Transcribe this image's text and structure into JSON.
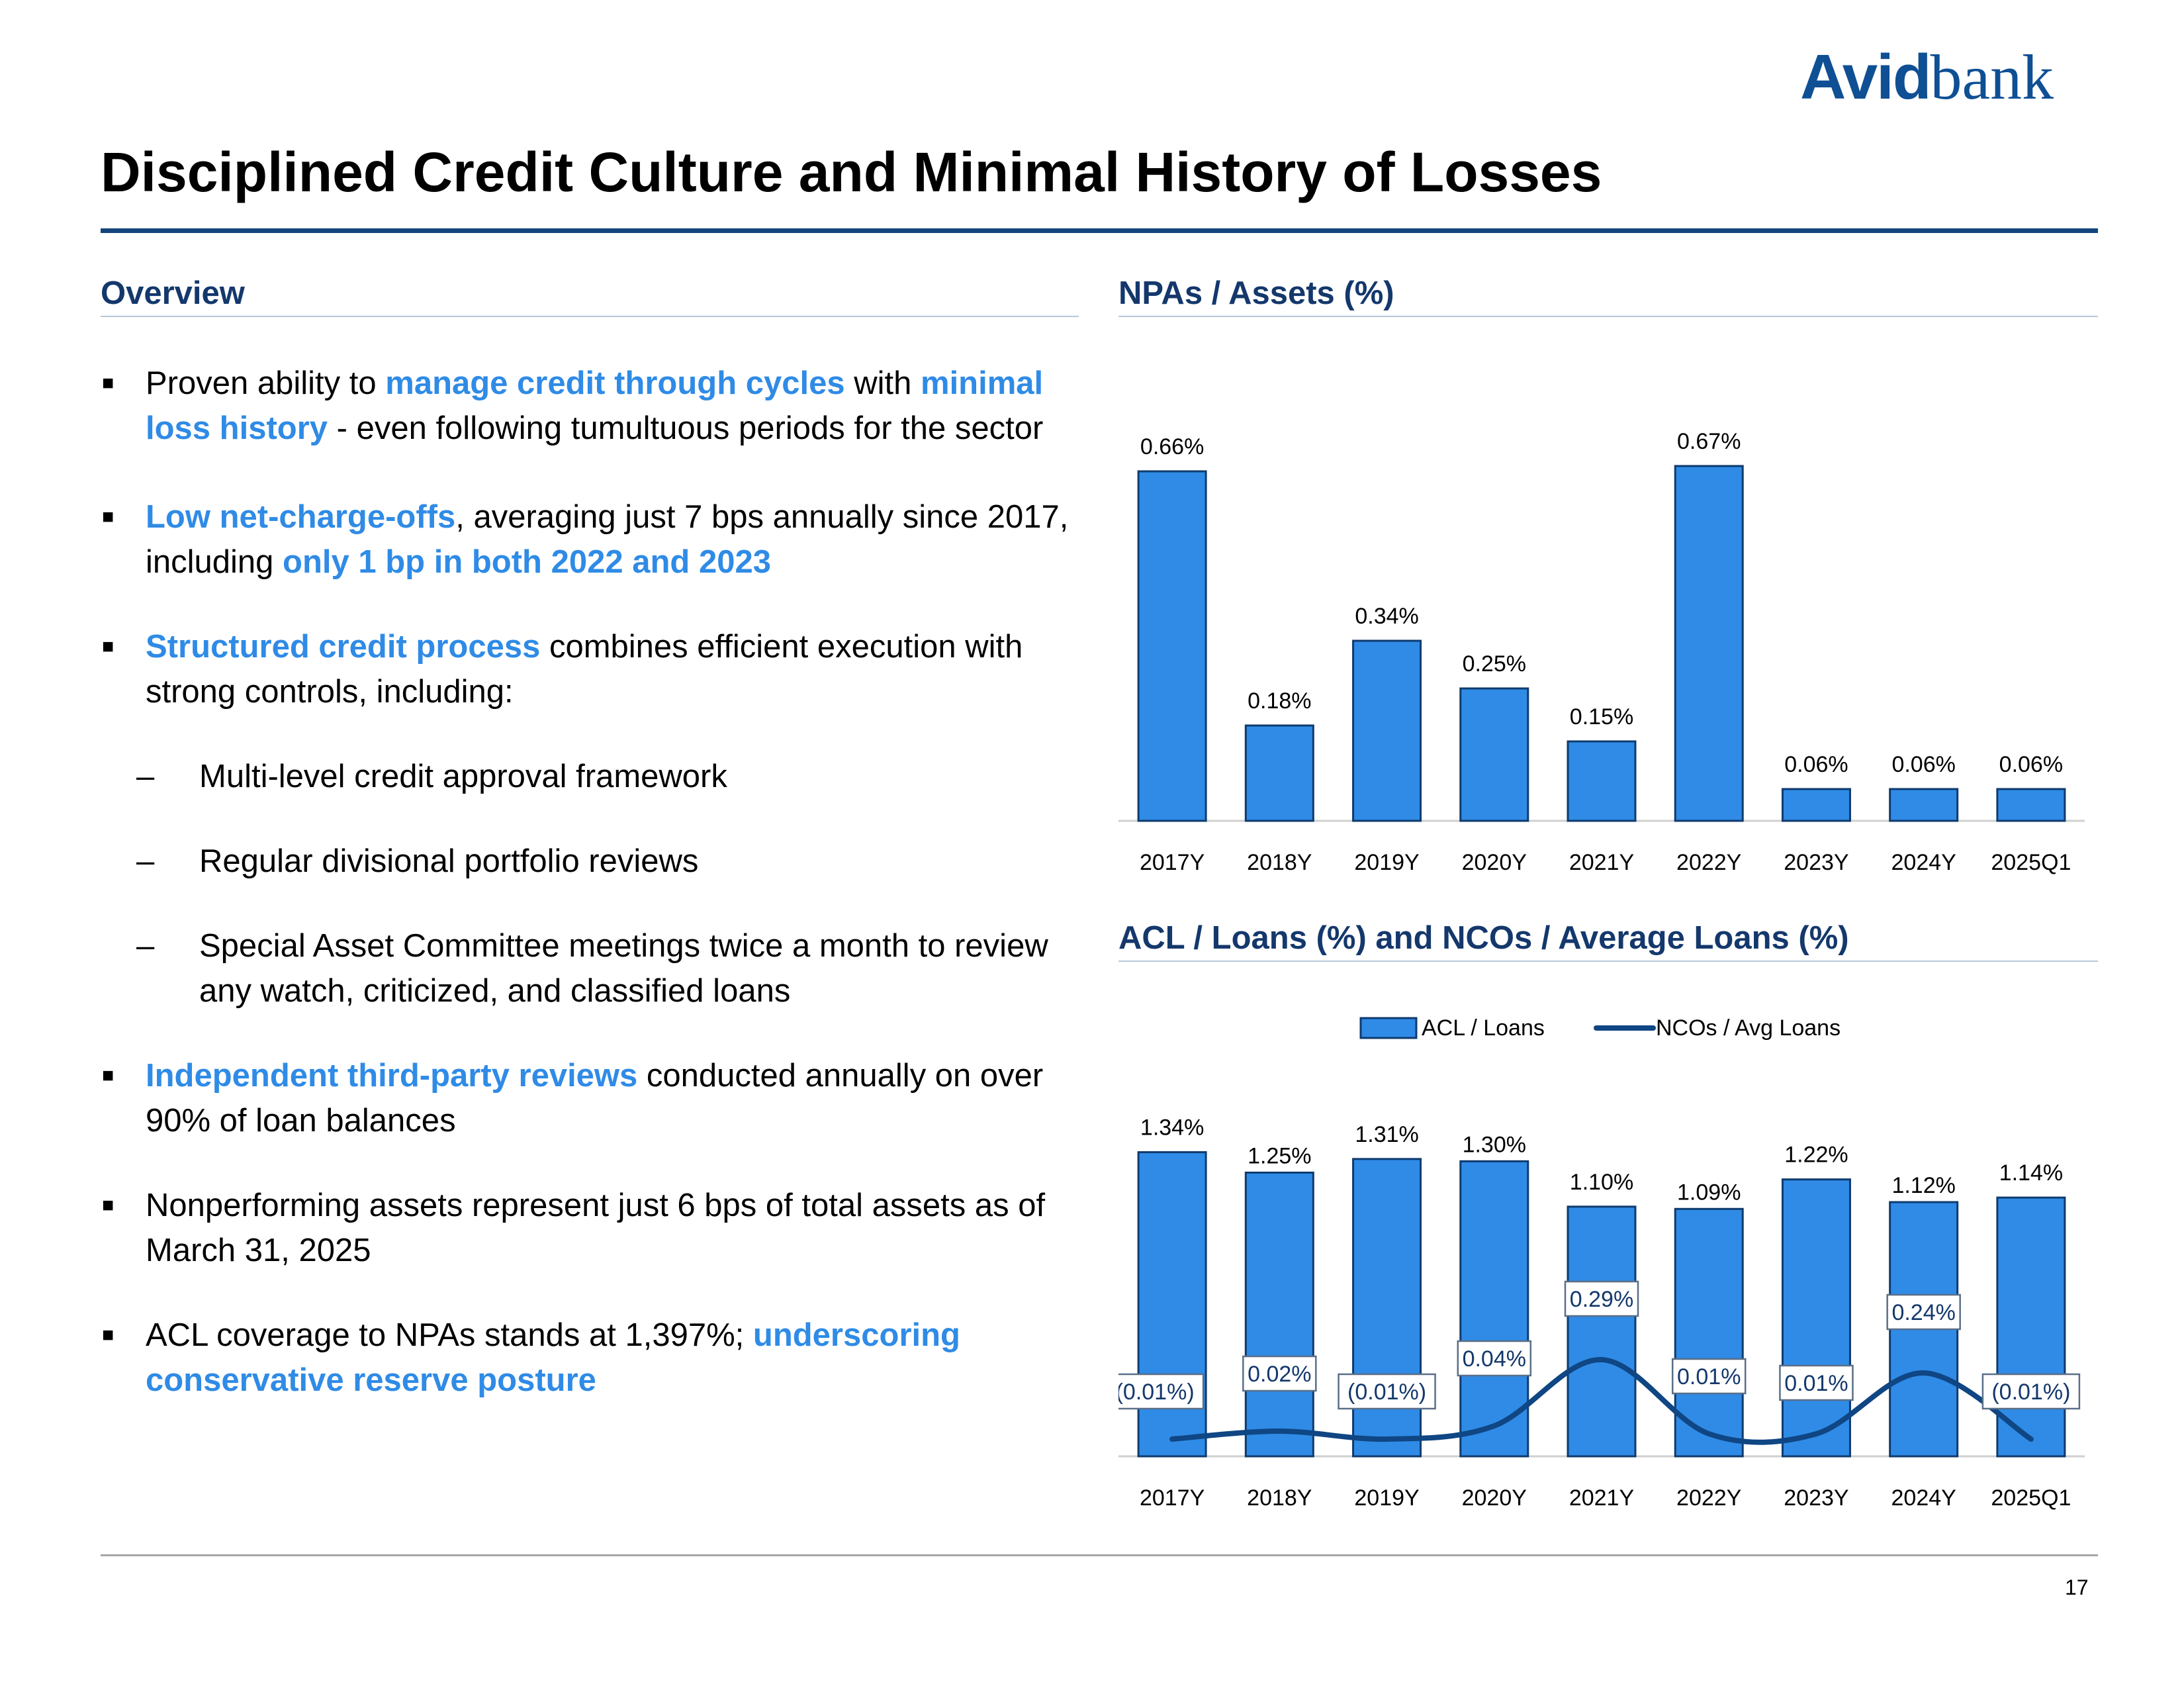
{
  "logo": {
    "part1": "Avid",
    "part2": "bank"
  },
  "page_title": "Disciplined Credit Culture and Minimal History of Losses",
  "overview": {
    "heading": "Overview",
    "bullets": [
      {
        "segments": [
          {
            "text": "Proven ability to ",
            "hl": false
          },
          {
            "text": "manage credit through cycles",
            "hl": true
          },
          {
            "text": " with ",
            "hl": false
          },
          {
            "text": "minimal loss history",
            "hl": true
          },
          {
            "text": " - even following tumultuous periods for the sector",
            "hl": false
          }
        ]
      },
      {
        "segments": [
          {
            "text": "Low net-charge-offs",
            "hl": true
          },
          {
            "text": ", averaging just 7 bps annually since 2017, including ",
            "hl": false
          },
          {
            "text": "only 1 bp in both 2022 and 2023",
            "hl": true
          }
        ]
      },
      {
        "segments": [
          {
            "text": "Structured credit process",
            "hl": true
          },
          {
            "text": " combines efficient execution with strong controls, including:",
            "hl": false
          }
        ]
      },
      {
        "segments": [
          {
            "text": "Independent third-party reviews",
            "hl": true
          },
          {
            "text": " conducted annually on over 90% of loan balances",
            "hl": false
          }
        ]
      },
      {
        "segments": [
          {
            "text": "Nonperforming assets represent just 6 bps of total assets as of March 31, 2025",
            "hl": false
          }
        ]
      },
      {
        "segments": [
          {
            "text": "ACL coverage to NPAs stands at 1,397%; ",
            "hl": false
          },
          {
            "text": "underscoring conservative reserve posture",
            "hl": true
          }
        ]
      }
    ],
    "sub_items": [
      "Multi-level credit approval framework",
      "Regular divisional portfolio reviews",
      "Special Asset Committee meetings twice a month to review any watch, criticized, and classified loans"
    ]
  },
  "colors": {
    "bar": "#2f8be6",
    "bar_edge": "#0f3b6e",
    "line": "#0f4683",
    "title": "#14386c",
    "highlight": "#2f8be6"
  },
  "chart_data": [
    {
      "type": "bar",
      "title": "NPAs / Assets (%)",
      "categories": [
        "2017Y",
        "2018Y",
        "2019Y",
        "2020Y",
        "2021Y",
        "2022Y",
        "2023Y",
        "2024Y",
        "2025Q1"
      ],
      "values": [
        0.66,
        0.18,
        0.34,
        0.25,
        0.15,
        0.67,
        0.06,
        0.06,
        0.06
      ],
      "labels": [
        "0.66%",
        "0.18%",
        "0.34%",
        "0.25%",
        "0.15%",
        "0.67%",
        "0.06%",
        "0.06%",
        "0.06%"
      ],
      "ylim": [
        0,
        0.7
      ]
    },
    {
      "type": "bar+line",
      "title": "ACL / Loans (%) and NCOs / Average Loans (%)",
      "categories": [
        "2017Y",
        "2018Y",
        "2019Y",
        "2020Y",
        "2021Y",
        "2022Y",
        "2023Y",
        "2024Y",
        "2025Q1"
      ],
      "legend": [
        "ACL / Loans",
        "NCOs / Avg Loans"
      ],
      "series": [
        {
          "name": "ACL / Loans",
          "kind": "bar",
          "values": [
            1.34,
            1.25,
            1.31,
            1.3,
            1.1,
            1.09,
            1.22,
            1.12,
            1.14
          ],
          "labels": [
            "1.34%",
            "1.25%",
            "1.31%",
            "1.30%",
            "1.10%",
            "1.09%",
            "1.22%",
            "1.12%",
            "1.14%"
          ]
        },
        {
          "name": "NCOs / Avg Loans",
          "kind": "line",
          "values": [
            -0.01,
            0.02,
            -0.01,
            0.04,
            0.29,
            0.01,
            0.01,
            0.24,
            -0.01
          ],
          "labels": [
            "(0.01%)",
            "0.02%",
            "(0.01%)",
            "0.04%",
            "0.29%",
            "0.01%",
            "0.01%",
            "0.24%",
            "(0.01%)"
          ]
        }
      ],
      "ylim": [
        0,
        1.4
      ]
    }
  ],
  "page_number": "17"
}
